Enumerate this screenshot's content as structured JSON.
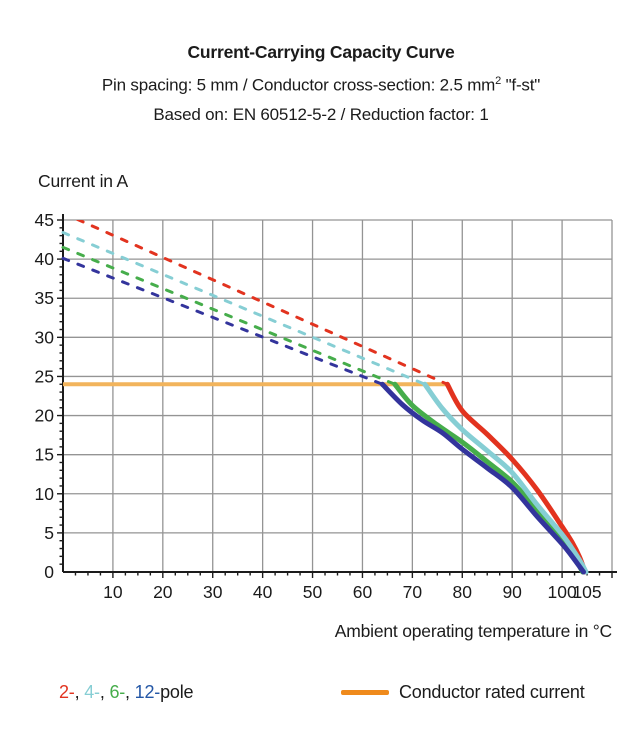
{
  "header": {
    "title": "Current-Carrying Capacity Curve",
    "subtitle1_pre": "Pin spacing: 5 mm / Conductor cross-section: 2.5 mm",
    "subtitle1_sup": "2",
    "subtitle1_post": " \"f-st\"",
    "subtitle2": "Based on: EN 60512-5-2 / Reduction factor: 1"
  },
  "chart_data": {
    "type": "line",
    "title": "Current-Carrying Capacity Curve",
    "xlabel": "Ambient operating temperature in °C",
    "ylabel": "Current in A",
    "x_range": [
      0,
      110
    ],
    "y_range": [
      0,
      45
    ],
    "x_gridlines": [
      10,
      20,
      30,
      40,
      50,
      60,
      70,
      80,
      90,
      100,
      110
    ],
    "y_gridlines": [
      5,
      10,
      15,
      20,
      25,
      30,
      35,
      40,
      45
    ],
    "x_tick_labels": [
      10,
      20,
      30,
      40,
      50,
      60,
      70,
      80,
      90,
      100,
      105
    ],
    "y_tick_labels": [
      0,
      5,
      10,
      15,
      20,
      25,
      30,
      35,
      40,
      45
    ],
    "x_minor_step": 2.5,
    "y_minor_step": 1,
    "grid_color": "#949494",
    "axis_color": "#1b1b1b",
    "rated_current": {
      "value": 24,
      "x_start": 0,
      "x_end": 77,
      "line_color": "#f2b45c",
      "legend_color": "#ef8a1c",
      "label": "Conductor rated current"
    },
    "series": [
      {
        "name": "2-pole",
        "color": "#e2331f",
        "dashed": [
          [
            0,
            45.9
          ],
          [
            77,
            24
          ]
        ],
        "solid": [
          [
            77,
            24
          ],
          [
            80,
            20.6
          ],
          [
            85,
            17.6
          ],
          [
            90,
            14.4
          ],
          [
            95,
            10.5
          ],
          [
            100,
            5.8
          ],
          [
            102,
            3.8
          ],
          [
            103.5,
            1.9
          ],
          [
            104.6,
            0
          ]
        ]
      },
      {
        "name": "6-pole",
        "color": "#46ad4b",
        "dashed": [
          [
            0,
            41.5
          ],
          [
            66.5,
            24
          ]
        ],
        "solid": [
          [
            66.5,
            24
          ],
          [
            70,
            21.3
          ],
          [
            75,
            18.8
          ],
          [
            80,
            16.6
          ],
          [
            85,
            14.1
          ],
          [
            90,
            11.5
          ],
          [
            95,
            7.9
          ],
          [
            100,
            4.2
          ],
          [
            102,
            2.5
          ],
          [
            104.1,
            0
          ]
        ]
      },
      {
        "name": "4-pole",
        "color": "#86ced4",
        "dashed": [
          [
            0,
            43.4
          ],
          [
            72.5,
            24
          ]
        ],
        "solid": [
          [
            72.5,
            24
          ],
          [
            76,
            20.9
          ],
          [
            80,
            18.2
          ],
          [
            85,
            15.5
          ],
          [
            90,
            12.7
          ],
          [
            95,
            8.6
          ],
          [
            100,
            4.8
          ],
          [
            102,
            3.0
          ],
          [
            103.8,
            1.2
          ],
          [
            104.8,
            0
          ]
        ]
      },
      {
        "name": "12-pole",
        "color": "#33349c",
        "dashed": [
          [
            0,
            40.1
          ],
          [
            64,
            24
          ]
        ],
        "solid": [
          [
            64,
            24
          ],
          [
            68,
            21.4
          ],
          [
            72,
            19.4
          ],
          [
            76,
            17.8
          ],
          [
            80,
            15.7
          ],
          [
            85,
            13.3
          ],
          [
            90,
            10.8
          ],
          [
            95,
            7.1
          ],
          [
            100,
            3.6
          ],
          [
            102,
            2.0
          ],
          [
            104.3,
            0
          ]
        ]
      }
    ],
    "legend": {
      "items": [
        {
          "label": "2-",
          "color": "#e2331f"
        },
        {
          "label": "4-",
          "color": "#86ced4"
        },
        {
          "label": "6-",
          "color": "#46ad4b"
        },
        {
          "label": "12-",
          "color": "#2457a6"
        }
      ],
      "separator": ", ",
      "suffix": "pole",
      "position": "bottom"
    }
  }
}
